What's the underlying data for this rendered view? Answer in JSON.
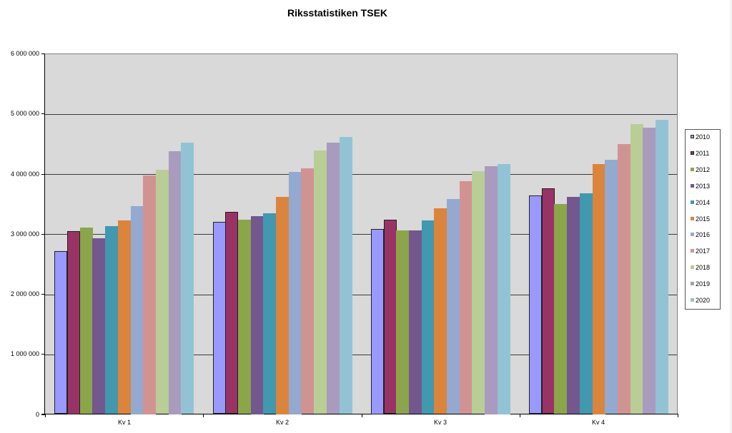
{
  "chart_data": {
    "type": "bar",
    "title": "Riksstatistiken TSEK",
    "xlabel": "",
    "ylabel": "",
    "ylim": [
      0,
      6000000
    ],
    "yticks": [
      0,
      1000000,
      2000000,
      3000000,
      4000000,
      5000000,
      6000000
    ],
    "ytick_labels": [
      "0",
      "1 000 000",
      "2 000 000",
      "3 000 000",
      "4 000 000",
      "5 000 000",
      "6 000 000"
    ],
    "grid": true,
    "legend_position": "right",
    "categories": [
      "Kv 1",
      "Kv 2",
      "Kv 3",
      "Kv 4"
    ],
    "series": [
      {
        "name": "2010",
        "color": "#9999ff",
        "values": [
          2716000,
          3200000,
          3080000,
          3640000
        ]
      },
      {
        "name": "2011",
        "color": "#993366",
        "values": [
          3050000,
          3360000,
          3230000,
          3760000
        ]
      },
      {
        "name": "2012",
        "color": "#8ba54b",
        "values": [
          3100000,
          3230000,
          3060000,
          3500000
        ]
      },
      {
        "name": "2013",
        "color": "#73578e",
        "values": [
          2930000,
          3300000,
          3060000,
          3610000
        ]
      },
      {
        "name": "2014",
        "color": "#4198af",
        "values": [
          3130000,
          3340000,
          3220000,
          3670000
        ]
      },
      {
        "name": "2015",
        "color": "#db843d",
        "values": [
          3220000,
          3620000,
          3420000,
          4160000
        ]
      },
      {
        "name": "2016",
        "color": "#93a9cf",
        "values": [
          3460000,
          4030000,
          3580000,
          4230000
        ]
      },
      {
        "name": "2017",
        "color": "#d19392",
        "values": [
          3970000,
          4090000,
          3880000,
          4490000
        ]
      },
      {
        "name": "2018",
        "color": "#b9cd96",
        "values": [
          4070000,
          4390000,
          4040000,
          4820000
        ]
      },
      {
        "name": "2019",
        "color": "#a99bbd",
        "values": [
          4380000,
          4520000,
          4130000,
          4770000
        ]
      },
      {
        "name": "2020",
        "color": "#92c3d4",
        "values": [
          4520000,
          4610000,
          4160000,
          4900000
        ]
      }
    ]
  },
  "colors": {
    "plot_background": "#d9d9d9",
    "gridline": "#3a3a3a",
    "page_background": "#ffffff"
  }
}
